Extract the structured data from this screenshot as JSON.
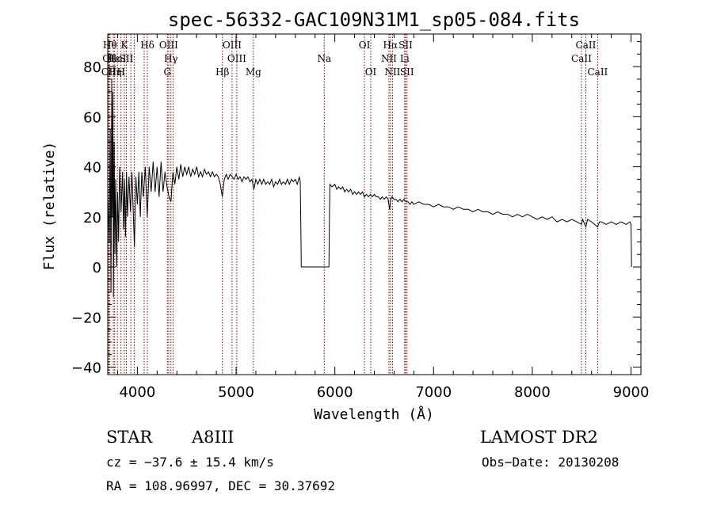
{
  "chart_data": {
    "type": "line",
    "title": "spec-56332-GAC109N31M1_sp05-084.fits",
    "xlabel": "Wavelength (Å)",
    "ylabel": "Flux (relative)",
    "xlim": [
      3700,
      9100
    ],
    "ylim": [
      -43,
      93
    ],
    "x_ticks": [
      4000,
      5000,
      6000,
      7000,
      8000,
      9000
    ],
    "y_ticks": [
      -40,
      -20,
      0,
      20,
      40,
      60,
      80
    ],
    "x_minor_step": 200,
    "y_minor_step": 5,
    "line_color": "#000000",
    "marker_line_color": "#8b0000",
    "series": [
      {
        "values": [
          [
            3700,
            30
          ],
          [
            3715,
            10
          ],
          [
            3725,
            55
          ],
          [
            3733,
            -10
          ],
          [
            3740,
            75
          ],
          [
            3746,
            20
          ],
          [
            3752,
            70
          ],
          [
            3758,
            -12
          ],
          [
            3765,
            50
          ],
          [
            3772,
            5
          ],
          [
            3780,
            35
          ],
          [
            3790,
            0
          ],
          [
            3800,
            30
          ],
          [
            3810,
            10
          ],
          [
            3820,
            40
          ],
          [
            3835,
            22
          ],
          [
            3850,
            38
          ],
          [
            3860,
            15
          ],
          [
            3870,
            35
          ],
          [
            3880,
            12
          ],
          [
            3890,
            38
          ],
          [
            3900,
            20
          ],
          [
            3915,
            36
          ],
          [
            3930,
            22
          ],
          [
            3945,
            38
          ],
          [
            3960,
            20
          ],
          [
            3970,
            8
          ],
          [
            3985,
            36
          ],
          [
            4000,
            25
          ],
          [
            4015,
            38
          ],
          [
            4030,
            20
          ],
          [
            4045,
            38
          ],
          [
            4060,
            28
          ],
          [
            4080,
            40
          ],
          [
            4100,
            20
          ],
          [
            4120,
            40
          ],
          [
            4140,
            30
          ],
          [
            4160,
            42
          ],
          [
            4180,
            30
          ],
          [
            4200,
            40
          ],
          [
            4220,
            28
          ],
          [
            4240,
            42
          ],
          [
            4260,
            30
          ],
          [
            4280,
            38
          ],
          [
            4300,
            32
          ],
          [
            4320,
            28
          ],
          [
            4340,
            26
          ],
          [
            4360,
            38
          ],
          [
            4380,
            33
          ],
          [
            4400,
            40
          ],
          [
            4420,
            35
          ],
          [
            4440,
            41
          ],
          [
            4460,
            36
          ],
          [
            4480,
            40
          ],
          [
            4500,
            37
          ],
          [
            4520,
            40
          ],
          [
            4540,
            36
          ],
          [
            4560,
            39
          ],
          [
            4580,
            37
          ],
          [
            4600,
            40
          ],
          [
            4620,
            36
          ],
          [
            4640,
            38
          ],
          [
            4660,
            36
          ],
          [
            4680,
            39
          ],
          [
            4700,
            37
          ],
          [
            4720,
            38
          ],
          [
            4740,
            36
          ],
          [
            4760,
            38
          ],
          [
            4780,
            36
          ],
          [
            4800,
            37
          ],
          [
            4820,
            36
          ],
          [
            4840,
            33
          ],
          [
            4860,
            28
          ],
          [
            4880,
            35
          ],
          [
            4900,
            37
          ],
          [
            4920,
            35
          ],
          [
            4940,
            37
          ],
          [
            4960,
            36
          ],
          [
            4980,
            35
          ],
          [
            5000,
            37
          ],
          [
            5020,
            35
          ],
          [
            5040,
            36
          ],
          [
            5060,
            34
          ],
          [
            5080,
            36
          ],
          [
            5100,
            35
          ],
          [
            5120,
            36
          ],
          [
            5140,
            34
          ],
          [
            5160,
            35
          ],
          [
            5180,
            31
          ],
          [
            5200,
            35
          ],
          [
            5220,
            33
          ],
          [
            5240,
            35
          ],
          [
            5260,
            33
          ],
          [
            5280,
            35
          ],
          [
            5300,
            33
          ],
          [
            5320,
            34
          ],
          [
            5340,
            33
          ],
          [
            5360,
            35
          ],
          [
            5380,
            32
          ],
          [
            5400,
            34
          ],
          [
            5420,
            33
          ],
          [
            5440,
            35
          ],
          [
            5460,
            33
          ],
          [
            5480,
            34
          ],
          [
            5500,
            33
          ],
          [
            5520,
            35
          ],
          [
            5540,
            33
          ],
          [
            5560,
            35
          ],
          [
            5580,
            34
          ],
          [
            5600,
            35
          ],
          [
            5620,
            33
          ],
          [
            5640,
            36
          ],
          [
            5650,
            34
          ],
          [
            5655,
            18
          ],
          [
            5660,
            0
          ],
          [
            5700,
            0
          ],
          [
            5800,
            0
          ],
          [
            5900,
            0
          ],
          [
            5940,
            0
          ],
          [
            5945,
            18
          ],
          [
            5950,
            33
          ],
          [
            5970,
            32
          ],
          [
            6000,
            33
          ],
          [
            6020,
            31
          ],
          [
            6040,
            32
          ],
          [
            6060,
            31
          ],
          [
            6080,
            32
          ],
          [
            6100,
            30
          ],
          [
            6120,
            31
          ],
          [
            6140,
            30
          ],
          [
            6160,
            31
          ],
          [
            6180,
            29
          ],
          [
            6200,
            30
          ],
          [
            6220,
            29
          ],
          [
            6240,
            30
          ],
          [
            6260,
            29
          ],
          [
            6280,
            30
          ],
          [
            6300,
            28
          ],
          [
            6320,
            29
          ],
          [
            6340,
            28
          ],
          [
            6360,
            29
          ],
          [
            6380,
            28
          ],
          [
            6400,
            29
          ],
          [
            6420,
            28
          ],
          [
            6440,
            28
          ],
          [
            6460,
            27
          ],
          [
            6480,
            28
          ],
          [
            6500,
            27
          ],
          [
            6520,
            28
          ],
          [
            6540,
            27
          ],
          [
            6555,
            23
          ],
          [
            6565,
            27
          ],
          [
            6580,
            28
          ],
          [
            6600,
            27
          ],
          [
            6620,
            27
          ],
          [
            6640,
            26
          ],
          [
            6660,
            27
          ],
          [
            6680,
            26
          ],
          [
            6700,
            27
          ],
          [
            6720,
            26
          ],
          [
            6740,
            26
          ],
          [
            6760,
            25
          ],
          [
            6780,
            26
          ],
          [
            6800,
            25
          ],
          [
            6850,
            26
          ],
          [
            6900,
            25
          ],
          [
            6950,
            25
          ],
          [
            7000,
            24
          ],
          [
            7050,
            25
          ],
          [
            7100,
            24
          ],
          [
            7150,
            24
          ],
          [
            7200,
            23
          ],
          [
            7250,
            24
          ],
          [
            7300,
            23
          ],
          [
            7350,
            23
          ],
          [
            7400,
            22
          ],
          [
            7450,
            23
          ],
          [
            7500,
            22
          ],
          [
            7550,
            22
          ],
          [
            7600,
            21
          ],
          [
            7650,
            22
          ],
          [
            7700,
            21
          ],
          [
            7750,
            21
          ],
          [
            7800,
            20
          ],
          [
            7850,
            21
          ],
          [
            7900,
            20
          ],
          [
            7950,
            21
          ],
          [
            8000,
            20
          ],
          [
            8050,
            19
          ],
          [
            8100,
            20
          ],
          [
            8150,
            19
          ],
          [
            8200,
            20
          ],
          [
            8250,
            18
          ],
          [
            8300,
            19
          ],
          [
            8350,
            18
          ],
          [
            8400,
            19
          ],
          [
            8450,
            18
          ],
          [
            8498,
            17
          ],
          [
            8510,
            19
          ],
          [
            8542,
            16
          ],
          [
            8560,
            19
          ],
          [
            8600,
            18
          ],
          [
            8662,
            16
          ],
          [
            8680,
            18
          ],
          [
            8700,
            18
          ],
          [
            8750,
            17
          ],
          [
            8800,
            18
          ],
          [
            8850,
            17
          ],
          [
            8900,
            18
          ],
          [
            8950,
            17
          ],
          [
            8990,
            18
          ],
          [
            9000,
            17
          ],
          [
            9003,
            8
          ],
          [
            9005,
            0
          ]
        ]
      }
    ],
    "lines": [
      {
        "wl": 3704,
        "label": "OI",
        "row": 1
      },
      {
        "wl": 3712,
        "label": "OII",
        "row": 2
      },
      {
        "wl": 3722,
        "label": "Hθ",
        "row": 0
      },
      {
        "wl": 3757,
        "label": "Hε",
        "row": 1
      },
      {
        "wl": 3770,
        "label": "Hη",
        "row": 2
      },
      {
        "wl": 3798,
        "label": "HeI",
        "row": 1
      },
      {
        "wl": 3834,
        "label": "H",
        "row": 2
      },
      {
        "wl": 3868,
        "label": "K",
        "row": 0
      },
      {
        "wl": 3889,
        "label": "SII",
        "row": 1
      },
      {
        "wl": 3934,
        "label": "",
        "row": 0
      },
      {
        "wl": 3968,
        "label": "",
        "row": 0
      },
      {
        "wl": 4069,
        "label": "",
        "row": 0
      },
      {
        "wl": 4101,
        "label": "Hδ",
        "row": 0
      },
      {
        "wl": 4304,
        "label": "G",
        "row": 2
      },
      {
        "wl": 4317,
        "label": "OIII",
        "row": 0
      },
      {
        "wl": 4340,
        "label": "Hγ",
        "row": 1
      },
      {
        "wl": 4363,
        "label": "",
        "row": 0
      },
      {
        "wl": 4861,
        "label": "Hβ",
        "row": 2
      },
      {
        "wl": 4959,
        "label": "OIII",
        "row": 0
      },
      {
        "wl": 5007,
        "label": "OIII",
        "row": 1
      },
      {
        "wl": 5175,
        "label": "Mg",
        "row": 2
      },
      {
        "wl": 5893,
        "label": "Na",
        "row": 1
      },
      {
        "wl": 6300,
        "label": "OI",
        "row": 0
      },
      {
        "wl": 6364,
        "label": "OI",
        "row": 2
      },
      {
        "wl": 6548,
        "label": "NII",
        "row": 1
      },
      {
        "wl": 6563,
        "label": "Hα",
        "row": 0
      },
      {
        "wl": 6584,
        "label": "NII",
        "row": 2
      },
      {
        "wl": 6707,
        "label": "Li",
        "row": 1
      },
      {
        "wl": 6717,
        "label": "SII",
        "row": 0
      },
      {
        "wl": 6731,
        "label": "SII",
        "row": 2
      },
      {
        "wl": 8498,
        "label": "CaII",
        "row": 1
      },
      {
        "wl": 8542,
        "label": "CaII",
        "row": 0
      },
      {
        "wl": 8662,
        "label": "CaII",
        "row": 2
      }
    ]
  },
  "info": {
    "object_class": "STAR",
    "subclass": "A8III",
    "survey": "LAMOST DR2",
    "redshift": "cz = −37.6 ± 15.4 km/s",
    "obs_date": "Obs−Date: 20130208",
    "coords": "RA = 108.96997, DEC =  30.37692"
  }
}
